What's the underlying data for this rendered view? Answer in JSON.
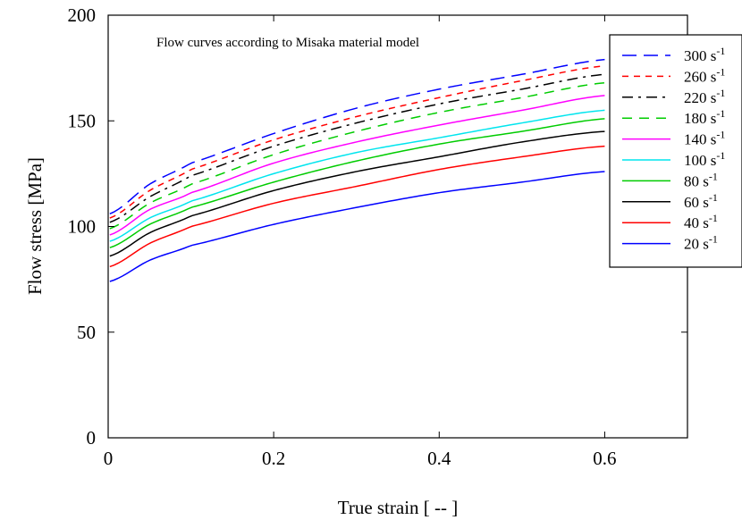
{
  "chart_data": {
    "type": "line",
    "title": "Flow curves according to Misaka material model",
    "xlabel": "True strain [ -- ]",
    "ylabel": "Flow stress [MPa]",
    "xlim": [
      0,
      0.7
    ],
    "ylim": [
      0,
      200
    ],
    "xticks": [
      0,
      0.2,
      0.4,
      0.6
    ],
    "xtick_labels": [
      "0",
      "0.2",
      "0.4",
      "0.6"
    ],
    "yticks": [
      0,
      50,
      100,
      150,
      200
    ],
    "ytick_labels": [
      "0",
      "50",
      "100",
      "150",
      "200"
    ],
    "grid": false,
    "legend_position": "top-right, outside plot edge",
    "x": [
      0.002,
      0.05,
      0.1,
      0.2,
      0.3,
      0.4,
      0.5,
      0.6
    ],
    "series": [
      {
        "name": "300 s",
        "sup": "-1",
        "color": "#0000ff",
        "dash": "long-dash",
        "values": [
          106,
          120,
          130,
          144,
          156,
          165,
          172,
          179
        ]
      },
      {
        "name": "260 s",
        "sup": "-1",
        "color": "#ff0000",
        "dash": "short-dash",
        "values": [
          104,
          117,
          127,
          141,
          152,
          161,
          169,
          176
        ]
      },
      {
        "name": "220 s",
        "sup": "-1",
        "color": "#000000",
        "dash": "dash-dot",
        "values": [
          102,
          114,
          124,
          138,
          149,
          158,
          165,
          172
        ]
      },
      {
        "name": "180 s",
        "sup": "-1",
        "color": "#00cc00",
        "dash": "dash",
        "values": [
          99,
          111,
          120,
          134,
          145,
          154,
          161,
          168
        ]
      },
      {
        "name": "140 s",
        "sup": "-1",
        "color": "#ff00ff",
        "dash": "solid",
        "values": [
          96,
          108,
          116,
          130,
          140,
          148,
          155,
          162
        ]
      },
      {
        "name": "100 s",
        "sup": "-1",
        "color": "#00e5ee",
        "dash": "solid",
        "values": [
          93,
          104,
          112,
          125,
          135,
          142,
          149,
          155
        ]
      },
      {
        "name": "80 s",
        "sup": "-1",
        "color": "#00cc00",
        "dash": "solid",
        "values": [
          90,
          101,
          109,
          121,
          131,
          139,
          145,
          151
        ]
      },
      {
        "name": "60 s",
        "sup": "-1",
        "color": "#000000",
        "dash": "solid",
        "values": [
          86,
          97,
          105,
          117,
          126,
          133,
          140,
          145
        ]
      },
      {
        "name": "40 s",
        "sup": "-1",
        "color": "#ff0000",
        "dash": "solid",
        "values": [
          81,
          92,
          100,
          111,
          119,
          127,
          133,
          138
        ]
      },
      {
        "name": "20 s",
        "sup": "-1",
        "color": "#0000ff",
        "dash": "solid",
        "values": [
          74,
          84,
          91,
          101,
          109,
          116,
          121,
          126
        ]
      }
    ]
  }
}
